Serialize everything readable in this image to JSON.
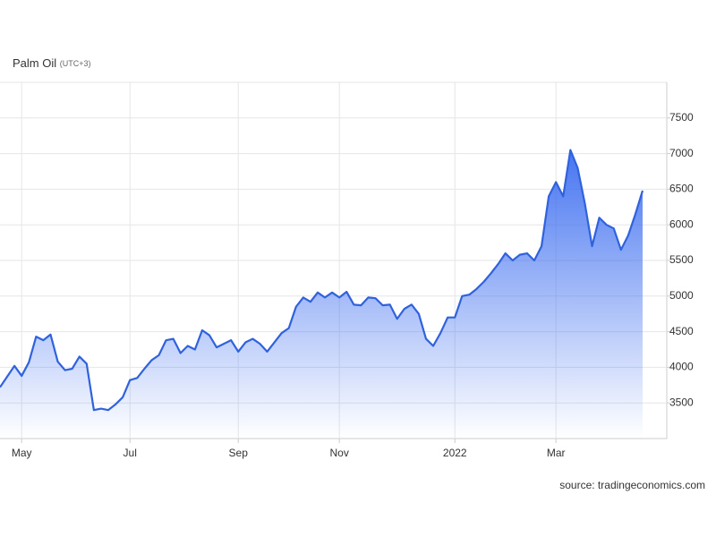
{
  "chart_data": {
    "type": "line",
    "title": "Palm Oil",
    "subtitle": "(UTC+3)",
    "source": "source: tradingeconomics.com",
    "color": "#2f62dc",
    "area": true,
    "grid": true,
    "ylim": [
      3000,
      8000
    ],
    "yticks": [
      3500,
      4000,
      4500,
      5000,
      5500,
      6000,
      6500,
      7000,
      7500
    ],
    "categories": [
      null,
      null,
      null,
      "May",
      null,
      null,
      null,
      null,
      null,
      null,
      null,
      null,
      null,
      null,
      null,
      null,
      null,
      null,
      "Jul",
      null,
      null,
      null,
      null,
      null,
      null,
      null,
      null,
      null,
      null,
      null,
      null,
      null,
      null,
      "Sep",
      null,
      null,
      null,
      null,
      null,
      null,
      null,
      null,
      null,
      null,
      null,
      null,
      null,
      "Nov",
      null,
      null,
      null,
      null,
      null,
      null,
      null,
      null,
      null,
      null,
      null,
      null,
      null,
      null,
      null,
      "2022",
      null,
      null,
      null,
      null,
      null,
      null,
      null,
      null,
      null,
      null,
      null,
      null,
      null,
      "Mar",
      null,
      null,
      null,
      null,
      null,
      null,
      null,
      null,
      null,
      null,
      null,
      null
    ],
    "values": [
      3720,
      3870,
      4020,
      3880,
      4070,
      4430,
      4380,
      4460,
      4080,
      3960,
      3980,
      4150,
      4050,
      3400,
      3420,
      3400,
      3480,
      3580,
      3820,
      3850,
      3980,
      4100,
      4170,
      4380,
      4400,
      4200,
      4300,
      4250,
      4520,
      4450,
      4280,
      4330,
      4380,
      4220,
      4350,
      4400,
      4330,
      4220,
      4350,
      4480,
      4550,
      4850,
      4980,
      4920,
      5050,
      4980,
      5050,
      4980,
      5060,
      4880,
      4870,
      4980,
      4970,
      4870,
      4880,
      4680,
      4820,
      4880,
      4750,
      4400,
      4300,
      4480,
      4700,
      4700,
      5000,
      5020,
      5100,
      5200,
      5320,
      5450,
      5600,
      5500,
      5580,
      5600,
      5500,
      5700,
      6400,
      6600,
      6400,
      7050,
      6800,
      6300,
      5700,
      6100,
      6000,
      5950,
      5650,
      5850,
      6150,
      6480
    ]
  }
}
